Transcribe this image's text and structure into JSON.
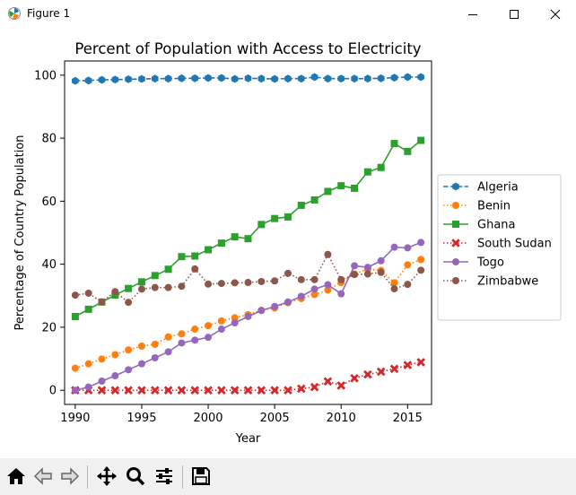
{
  "window": {
    "title": "Figure 1"
  },
  "toolbar": {
    "buttons": [
      {
        "name": "home-button",
        "icon": "home-icon"
      },
      {
        "name": "back-button",
        "icon": "back-arrow-icon"
      },
      {
        "name": "forward-button",
        "icon": "forward-arrow-icon"
      },
      {
        "name": "pan-button",
        "icon": "move-icon"
      },
      {
        "name": "zoom-button",
        "icon": "zoom-icon"
      },
      {
        "name": "configure-subplots-button",
        "icon": "sliders-icon"
      },
      {
        "name": "save-button",
        "icon": "save-icon"
      }
    ]
  },
  "chart_data": {
    "type": "line",
    "title": "Percent of Population with Access to Electricity",
    "xlabel": "Year",
    "ylabel": "Percentage of Country Population",
    "xlim": [
      1989.2,
      2016.8
    ],
    "ylim": [
      -4.5,
      104.5
    ],
    "xticks": [
      1990,
      1995,
      2000,
      2005,
      2010,
      2015
    ],
    "yticks": [
      0,
      20,
      40,
      60,
      80,
      100
    ],
    "grid": false,
    "legend_position": "right",
    "x": [
      1990,
      1991,
      1992,
      1993,
      1994,
      1995,
      1996,
      1997,
      1998,
      1999,
      2000,
      2001,
      2002,
      2003,
      2004,
      2005,
      2006,
      2007,
      2008,
      2009,
      2010,
      2011,
      2012,
      2013,
      2014,
      2015,
      2016
    ],
    "series": [
      {
        "name": "Algeria",
        "color": "#1f77b4",
        "linestyle": "dashed",
        "marker": "hexagon",
        "values": [
          98.2,
          98.3,
          98.5,
          98.6,
          98.7,
          98.8,
          98.9,
          98.9,
          99.0,
          99.0,
          99.1,
          99.1,
          98.8,
          99.0,
          98.9,
          98.8,
          98.9,
          98.9,
          99.4,
          98.9,
          98.9,
          98.9,
          98.9,
          99.0,
          99.2,
          99.4,
          99.4
        ]
      },
      {
        "name": "Benin",
        "color": "#ff7f0e",
        "linestyle": "dotted",
        "marker": "circle",
        "values": [
          7.0,
          8.4,
          9.9,
          11.3,
          12.8,
          14.0,
          14.6,
          16.9,
          17.9,
          19.4,
          20.5,
          22.0,
          23.0,
          24.0,
          25.4,
          26.1,
          27.8,
          29.1,
          30.4,
          31.8,
          34.2,
          36.9,
          38.4,
          38.0,
          34.1,
          39.8,
          41.5
        ]
      },
      {
        "name": "Ghana",
        "color": "#2ca02c",
        "linestyle": "solid",
        "marker": "square",
        "values": [
          23.4,
          25.7,
          28.0,
          30.2,
          32.3,
          34.4,
          36.4,
          38.4,
          42.4,
          42.6,
          44.6,
          46.7,
          48.7,
          48.1,
          52.6,
          54.5,
          55.0,
          58.7,
          60.4,
          63.1,
          64.9,
          64.1,
          69.3,
          70.7,
          78.3,
          75.8,
          79.3
        ]
      },
      {
        "name": "South Sudan",
        "color": "#d62728",
        "linestyle": "dotted",
        "marker": "x",
        "values": [
          0,
          0,
          0,
          0,
          0,
          0,
          0,
          0,
          0,
          0,
          0,
          0,
          0,
          0,
          0,
          0,
          0,
          0.5,
          1.0,
          2.8,
          1.5,
          3.8,
          5.0,
          5.9,
          6.8,
          8.0,
          8.9
        ]
      },
      {
        "name": "Togo",
        "color": "#9467bd",
        "linestyle": "solid",
        "marker": "circle",
        "values": [
          0,
          1.0,
          2.9,
          4.6,
          6.5,
          8.4,
          10.3,
          12.2,
          15.0,
          15.9,
          16.8,
          19.4,
          21.4,
          23.4,
          25.3,
          26.6,
          28.0,
          29.8,
          32.1,
          33.5,
          30.6,
          39.5,
          39.0,
          41.1,
          45.4,
          45.2,
          46.9
        ]
      },
      {
        "name": "Zimbabwe",
        "color": "#8c564b",
        "linestyle": "dotted",
        "marker": "circle",
        "values": [
          30.2,
          30.8,
          28.0,
          31.3,
          27.9,
          32.1,
          32.6,
          32.6,
          33.0,
          38.5,
          33.7,
          33.9,
          34.1,
          34.2,
          34.5,
          34.7,
          37.1,
          35.1,
          35.1,
          43.1,
          35.1,
          36.7,
          36.9,
          37.4,
          32.2,
          33.6,
          38.1
        ]
      }
    ]
  }
}
